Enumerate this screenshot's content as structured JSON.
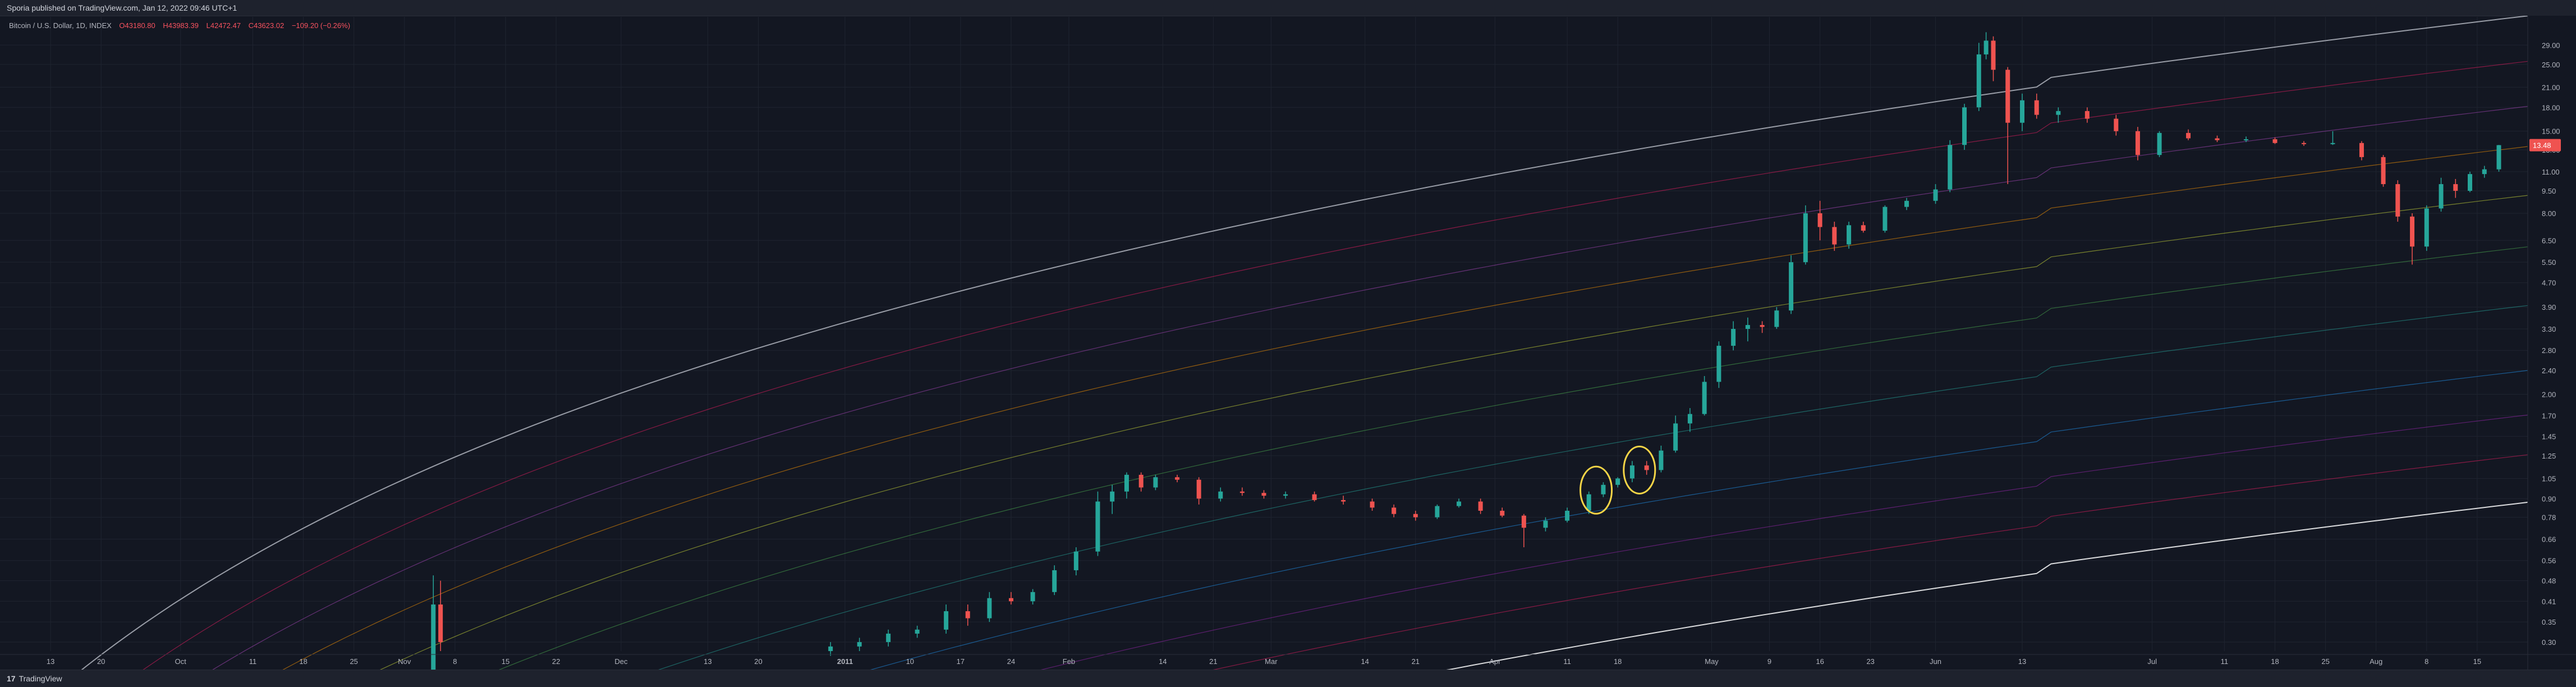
{
  "header": {
    "publisher_text": "Sporia published on TradingView.com, Jan 12, 2022 09:46 UTC+1"
  },
  "symbol": {
    "name": "Bitcoin / U.S. Dollar, 1D, INDEX",
    "open": "O43180.80",
    "high": "H43983.39",
    "low": "L42472.47",
    "close": "C43623.02",
    "change": "−109.20 (−0.26%)"
  },
  "footer": {
    "logo_glyph": "17",
    "brand": "TradingView"
  },
  "colors": {
    "background": "#131722",
    "up": "#26a69a",
    "down": "#ef5350",
    "highlight": "#f5d547",
    "bands": [
      "#b2b5be",
      "#e91e63",
      "#ab47bc",
      "#ff9800",
      "#cddc39",
      "#4caf50",
      "#26a69a",
      "#2196f3",
      "#9c27b0",
      "#e91e63",
      "#ffffff"
    ]
  },
  "chart_data": {
    "type": "candlestick",
    "y_scale": "log",
    "y_ticks": [
      "29.00",
      "25.00",
      "21.00",
      "18.00",
      "15.00",
      "13.00",
      "11.00",
      "9.50",
      "8.00",
      "6.50",
      "5.50",
      "4.70",
      "3.90",
      "3.30",
      "2.80",
      "2.40",
      "2.00",
      "1.70",
      "1.45",
      "1.25",
      "1.05",
      "0.90",
      "0.78",
      "0.66",
      "0.56",
      "0.48",
      "0.41",
      "0.35",
      "0.30"
    ],
    "y_tick_values": [
      29,
      25,
      21,
      18,
      15,
      13,
      11,
      9.5,
      8,
      6.5,
      5.5,
      4.7,
      3.9,
      3.3,
      2.8,
      2.4,
      2.0,
      1.7,
      1.45,
      1.25,
      1.05,
      0.9,
      0.78,
      0.66,
      0.56,
      0.48,
      0.41,
      0.35,
      0.3
    ],
    "ylim": [
      0.28,
      36.0
    ],
    "x_ticks": [
      "13",
      "20",
      "Oct",
      "11",
      "18",
      "25",
      "Nov",
      "8",
      "15",
      "22",
      "Dec",
      "13",
      "20",
      "2011",
      "10",
      "17",
      "24",
      "Feb",
      "14",
      "21",
      "Mar",
      "14",
      "21",
      "Apr",
      "11",
      "18",
      "May",
      "9",
      "16",
      "23",
      "Jun",
      "13",
      "Jul",
      "11",
      "18",
      "25",
      "Aug",
      "8",
      "15"
    ],
    "x_tick_dates": [
      "2010-09-13",
      "2010-09-20",
      "2010-10-01",
      "2010-10-11",
      "2010-10-18",
      "2010-10-25",
      "2010-11-01",
      "2010-11-08",
      "2010-11-15",
      "2010-11-22",
      "2010-12-01",
      "2010-12-13",
      "2010-12-20",
      "2011-01-01",
      "2011-01-10",
      "2011-01-17",
      "2011-01-24",
      "2011-02-01",
      "2011-02-14",
      "2011-02-21",
      "2011-03-01",
      "2011-03-14",
      "2011-03-21",
      "2011-04-01",
      "2011-04-11",
      "2011-04-18",
      "2011-05-01",
      "2011-05-09",
      "2011-05-16",
      "2011-05-23",
      "2011-06-01",
      "2011-06-13",
      "2011-07-01",
      "2011-07-11",
      "2011-07-18",
      "2011-07-25",
      "2011-08-01",
      "2011-08-08",
      "2011-08-15"
    ],
    "last_price_label": "13.48",
    "last_price": 13.48,
    "candles": [
      [
        "2010-11-05",
        0.24,
        0.5,
        0.22,
        0.4
      ],
      [
        "2010-11-06",
        0.4,
        0.48,
        0.28,
        0.3
      ],
      [
        "2010-12-30",
        0.28,
        0.3,
        0.27,
        0.29
      ],
      [
        "2011-01-03",
        0.29,
        0.31,
        0.28,
        0.3
      ],
      [
        "2011-01-07",
        0.3,
        0.33,
        0.29,
        0.32
      ],
      [
        "2011-01-11",
        0.32,
        0.34,
        0.31,
        0.33
      ],
      [
        "2011-01-15",
        0.33,
        0.4,
        0.32,
        0.38
      ],
      [
        "2011-01-18",
        0.38,
        0.4,
        0.34,
        0.36
      ],
      [
        "2011-01-21",
        0.36,
        0.44,
        0.35,
        0.42
      ],
      [
        "2011-01-24",
        0.42,
        0.44,
        0.4,
        0.41
      ],
      [
        "2011-01-27",
        0.41,
        0.45,
        0.4,
        0.44
      ],
      [
        "2011-01-30",
        0.44,
        0.54,
        0.43,
        0.52
      ],
      [
        "2011-02-02",
        0.52,
        0.62,
        0.5,
        0.6
      ],
      [
        "2011-02-05",
        0.6,
        0.95,
        0.58,
        0.88
      ],
      [
        "2011-02-07",
        0.88,
        1.0,
        0.8,
        0.95
      ],
      [
        "2011-02-09",
        0.95,
        1.1,
        0.9,
        1.08
      ],
      [
        "2011-02-11",
        1.08,
        1.1,
        0.95,
        0.98
      ],
      [
        "2011-02-13",
        0.98,
        1.08,
        0.96,
        1.06
      ],
      [
        "2011-02-16",
        1.06,
        1.08,
        1.02,
        1.04
      ],
      [
        "2011-02-19",
        1.04,
        1.06,
        0.86,
        0.9
      ],
      [
        "2011-02-22",
        0.9,
        0.98,
        0.88,
        0.95
      ],
      [
        "2011-02-25",
        0.95,
        0.98,
        0.92,
        0.94
      ],
      [
        "2011-02-28",
        0.94,
        0.96,
        0.9,
        0.92
      ],
      [
        "2011-03-03",
        0.92,
        0.95,
        0.9,
        0.93
      ],
      [
        "2011-03-07",
        0.93,
        0.95,
        0.88,
        0.89
      ],
      [
        "2011-03-11",
        0.89,
        0.92,
        0.86,
        0.88
      ],
      [
        "2011-03-15",
        0.88,
        0.9,
        0.82,
        0.84
      ],
      [
        "2011-03-18",
        0.84,
        0.86,
        0.78,
        0.8
      ],
      [
        "2011-03-21",
        0.8,
        0.82,
        0.76,
        0.78
      ],
      [
        "2011-03-24",
        0.78,
        0.86,
        0.77,
        0.85
      ],
      [
        "2011-03-27",
        0.85,
        0.9,
        0.84,
        0.88
      ],
      [
        "2011-03-30",
        0.88,
        0.9,
        0.8,
        0.82
      ],
      [
        "2011-04-02",
        0.82,
        0.84,
        0.78,
        0.79
      ],
      [
        "2011-04-05",
        0.79,
        0.8,
        0.62,
        0.72
      ],
      [
        "2011-04-08",
        0.72,
        0.78,
        0.7,
        0.76
      ],
      [
        "2011-04-11",
        0.76,
        0.84,
        0.75,
        0.82
      ],
      [
        "2011-04-14",
        0.82,
        0.95,
        0.8,
        0.93
      ],
      [
        "2011-04-16",
        0.93,
        1.02,
        0.91,
        1.0
      ],
      [
        "2011-04-18",
        1.0,
        1.06,
        0.98,
        1.05
      ],
      [
        "2011-04-20",
        1.05,
        1.2,
        1.02,
        1.16
      ],
      [
        "2011-04-22",
        1.16,
        1.2,
        1.08,
        1.12
      ],
      [
        "2011-04-24",
        1.12,
        1.35,
        1.1,
        1.3
      ],
      [
        "2011-04-26",
        1.3,
        1.7,
        1.28,
        1.6
      ],
      [
        "2011-04-28",
        1.6,
        1.8,
        1.5,
        1.72
      ],
      [
        "2011-04-30",
        1.72,
        2.3,
        1.7,
        2.2
      ],
      [
        "2011-05-02",
        2.2,
        3.0,
        2.1,
        2.9
      ],
      [
        "2011-05-04",
        2.9,
        3.5,
        2.8,
        3.3
      ],
      [
        "2011-05-06",
        3.3,
        3.6,
        3.0,
        3.4
      ],
      [
        "2011-05-08",
        3.4,
        3.5,
        3.2,
        3.35
      ],
      [
        "2011-05-10",
        3.35,
        3.9,
        3.3,
        3.8
      ],
      [
        "2011-05-12",
        3.8,
        5.8,
        3.7,
        5.5
      ],
      [
        "2011-05-14",
        5.5,
        8.5,
        5.4,
        8.0
      ],
      [
        "2011-05-16",
        8.0,
        8.8,
        6.5,
        7.2
      ],
      [
        "2011-05-18",
        7.2,
        7.5,
        6.0,
        6.3
      ],
      [
        "2011-05-20",
        6.3,
        7.5,
        6.1,
        7.3
      ],
      [
        "2011-05-22",
        7.3,
        7.5,
        6.9,
        7.0
      ],
      [
        "2011-05-25",
        7.0,
        8.5,
        6.9,
        8.4
      ],
      [
        "2011-05-28",
        8.4,
        9.0,
        8.2,
        8.8
      ],
      [
        "2011-06-01",
        8.8,
        10.0,
        8.6,
        9.6
      ],
      [
        "2011-06-03",
        9.6,
        14.0,
        9.4,
        13.5
      ],
      [
        "2011-06-05",
        13.5,
        18.5,
        13.0,
        18.0
      ],
      [
        "2011-06-07",
        18.0,
        29.5,
        17.5,
        27.0
      ],
      [
        "2011-06-08",
        27.0,
        32.0,
        26.0,
        30.0
      ],
      [
        "2011-06-09",
        30.0,
        31.0,
        22.0,
        24.0
      ],
      [
        "2011-06-11",
        24.0,
        24.5,
        10.0,
        16.0
      ],
      [
        "2011-06-13",
        16.0,
        20.0,
        15.0,
        19.0
      ],
      [
        "2011-06-15",
        19.0,
        20.0,
        16.5,
        17.0
      ],
      [
        "2011-06-18",
        17.0,
        18.0,
        16.0,
        17.5
      ],
      [
        "2011-06-22",
        17.5,
        18.0,
        16.0,
        16.5
      ],
      [
        "2011-06-26",
        16.5,
        17.0,
        14.5,
        15.0
      ],
      [
        "2011-06-29",
        15.0,
        15.5,
        12.0,
        12.5
      ],
      [
        "2011-07-02",
        12.5,
        15.0,
        12.3,
        14.8
      ],
      [
        "2011-07-06",
        14.8,
        15.2,
        14.0,
        14.2
      ],
      [
        "2011-07-10",
        14.2,
        14.5,
        13.8,
        14.0
      ],
      [
        "2011-07-14",
        14.0,
        14.4,
        13.8,
        14.1
      ],
      [
        "2011-07-18",
        14.1,
        14.3,
        13.6,
        13.7
      ],
      [
        "2011-07-22",
        13.7,
        13.9,
        13.4,
        13.6
      ],
      [
        "2011-07-26",
        13.6,
        15.0,
        13.5,
        13.7
      ],
      [
        "2011-07-30",
        13.7,
        13.9,
        12.0,
        12.3
      ],
      [
        "2011-08-02",
        12.3,
        12.5,
        9.8,
        10.0
      ],
      [
        "2011-08-04",
        10.0,
        10.3,
        7.5,
        7.8
      ],
      [
        "2011-08-06",
        7.8,
        8.0,
        5.4,
        6.2
      ],
      [
        "2011-08-08",
        6.2,
        8.5,
        6.0,
        8.3
      ],
      [
        "2011-08-10",
        8.3,
        10.5,
        8.1,
        10.0
      ],
      [
        "2011-08-12",
        10.0,
        10.4,
        9.0,
        9.5
      ],
      [
        "2011-08-14",
        9.5,
        11.0,
        9.4,
        10.8
      ],
      [
        "2011-08-16",
        10.8,
        11.5,
        10.5,
        11.2
      ],
      [
        "2011-08-18",
        11.2,
        13.5,
        11.0,
        13.48
      ]
    ]
  }
}
